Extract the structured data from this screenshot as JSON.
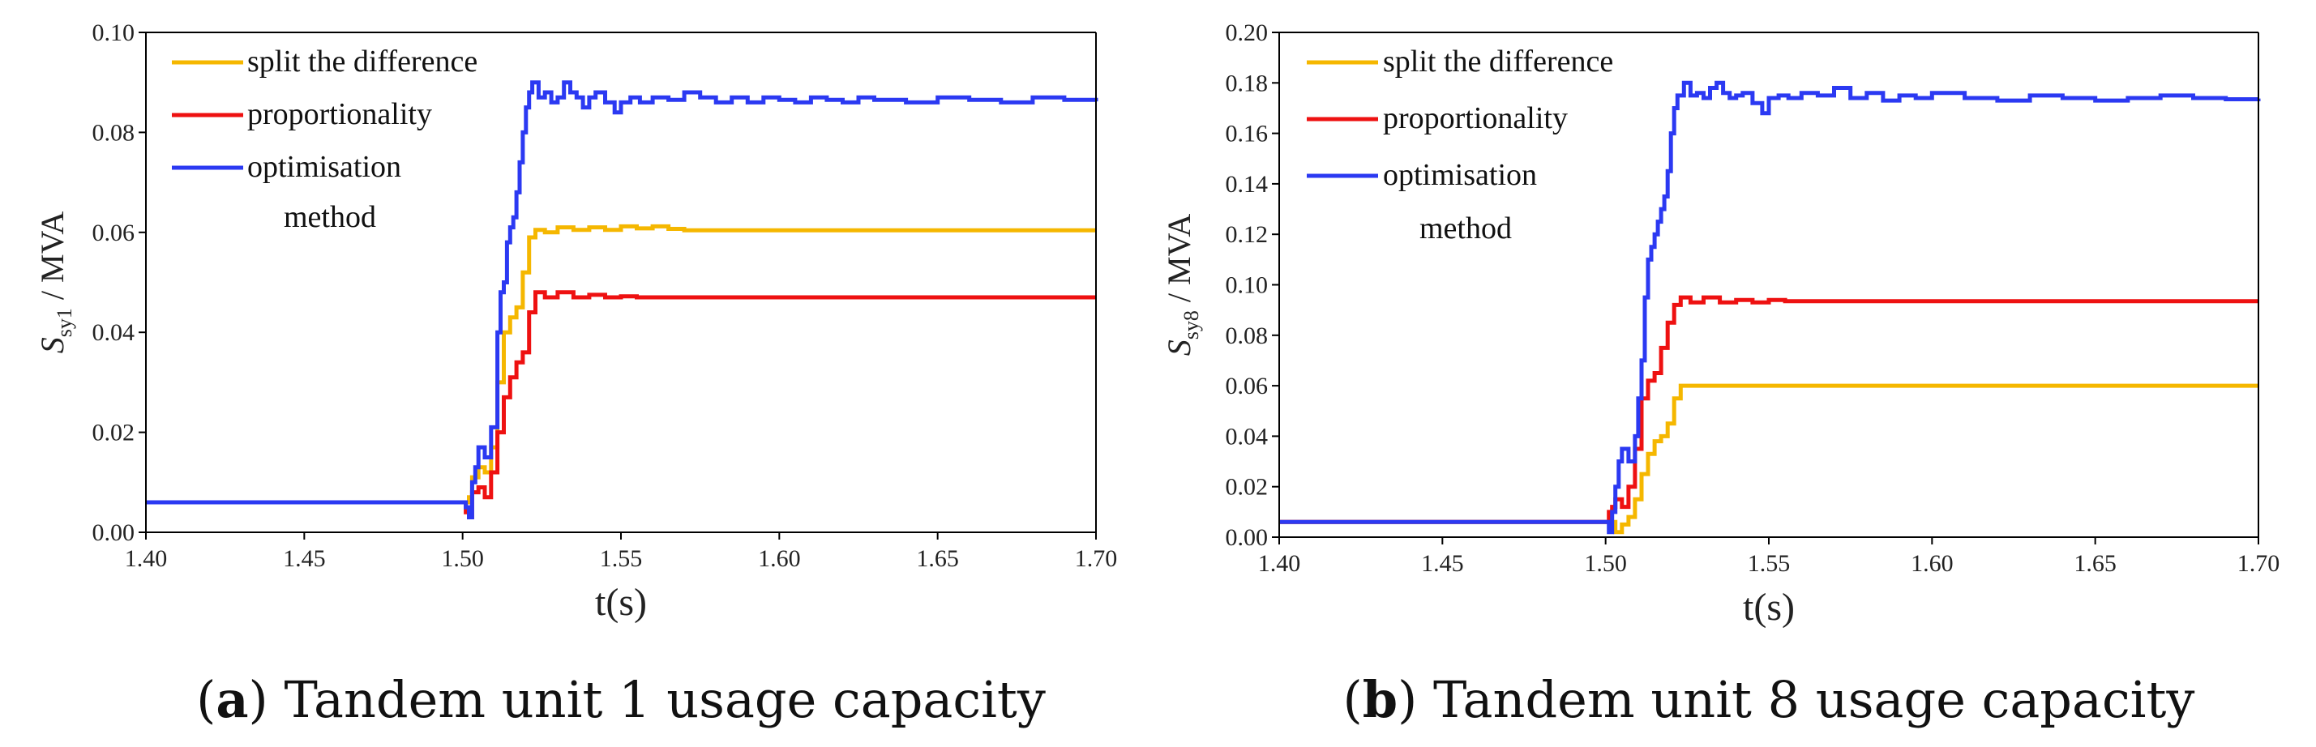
{
  "colors": {
    "split_the_difference": "#F5B700",
    "proportionality": "#EE1111",
    "optimisation_method": "#2B39F2"
  },
  "chart_data": [
    {
      "id": "a",
      "type": "line",
      "caption": {
        "letter": "a",
        "text": " Tandem unit 1 usage capacity"
      },
      "xlabel": "t(s)",
      "ylabel": {
        "symbol": "S",
        "subscript": "sy1",
        "unit": " / MVA"
      },
      "xlim": [
        1.4,
        1.7
      ],
      "ylim": [
        0.0,
        0.1
      ],
      "xticks": [
        "1.40",
        "1.45",
        "1.50",
        "1.55",
        "1.60",
        "1.65",
        "1.70"
      ],
      "yticks": [
        "0.00",
        "0.02",
        "0.04",
        "0.06",
        "0.08",
        "0.10"
      ],
      "legend": {
        "location": "top-left",
        "entries": [
          {
            "label": "split the difference",
            "color": "#F5B700"
          },
          {
            "label": "proportionality",
            "color": "#EE1111"
          },
          {
            "label": "optimisation",
            "label2": "method",
            "color": "#2B39F2"
          }
        ]
      },
      "series": [
        {
          "name": "split the difference",
          "color": "#F5B700",
          "x": [
            1.4,
            1.5,
            1.502,
            1.503,
            1.505,
            1.507,
            1.509,
            1.511,
            1.513,
            1.515,
            1.517,
            1.519,
            1.521,
            1.523,
            1.526,
            1.53,
            1.535,
            1.54,
            1.545,
            1.55,
            1.555,
            1.56,
            1.565,
            1.57,
            1.6,
            1.65,
            1.7
          ],
          "y": [
            0.006,
            0.006,
            0.007,
            0.011,
            0.013,
            0.012,
            0.017,
            0.03,
            0.04,
            0.043,
            0.045,
            0.052,
            0.059,
            0.0605,
            0.06,
            0.061,
            0.0605,
            0.061,
            0.0605,
            0.0612,
            0.0608,
            0.0612,
            0.0607,
            0.0604,
            0.0604,
            0.0604,
            0.0604
          ]
        },
        {
          "name": "proportionality",
          "color": "#EE1111",
          "x": [
            1.4,
            1.5,
            1.501,
            1.502,
            1.503,
            1.505,
            1.507,
            1.509,
            1.511,
            1.513,
            1.515,
            1.517,
            1.519,
            1.521,
            1.523,
            1.526,
            1.53,
            1.535,
            1.54,
            1.545,
            1.55,
            1.555,
            1.6,
            1.65,
            1.7
          ],
          "y": [
            0.006,
            0.006,
            0.004,
            0.003,
            0.008,
            0.009,
            0.007,
            0.012,
            0.02,
            0.027,
            0.031,
            0.034,
            0.036,
            0.044,
            0.048,
            0.047,
            0.048,
            0.047,
            0.0475,
            0.047,
            0.0472,
            0.047,
            0.047,
            0.047,
            0.047
          ]
        },
        {
          "name": "optimisation method",
          "color": "#2B39F2",
          "x": [
            1.4,
            1.5,
            1.501,
            1.502,
            1.503,
            1.504,
            1.505,
            1.507,
            1.509,
            1.511,
            1.512,
            1.513,
            1.514,
            1.515,
            1.516,
            1.517,
            1.518,
            1.519,
            1.52,
            1.521,
            1.522,
            1.524,
            1.526,
            1.528,
            1.53,
            1.532,
            1.534,
            1.536,
            1.538,
            1.54,
            1.542,
            1.545,
            1.548,
            1.55,
            1.553,
            1.556,
            1.56,
            1.565,
            1.57,
            1.575,
            1.58,
            1.585,
            1.59,
            1.595,
            1.6,
            1.605,
            1.61,
            1.615,
            1.62,
            1.625,
            1.63,
            1.64,
            1.65,
            1.66,
            1.67,
            1.68,
            1.69,
            1.7
          ],
          "y": [
            0.006,
            0.006,
            0.005,
            0.003,
            0.01,
            0.013,
            0.017,
            0.015,
            0.021,
            0.04,
            0.048,
            0.05,
            0.058,
            0.061,
            0.063,
            0.068,
            0.074,
            0.08,
            0.085,
            0.088,
            0.09,
            0.087,
            0.088,
            0.086,
            0.087,
            0.09,
            0.088,
            0.087,
            0.085,
            0.087,
            0.088,
            0.086,
            0.084,
            0.086,
            0.087,
            0.086,
            0.087,
            0.0865,
            0.088,
            0.087,
            0.086,
            0.087,
            0.086,
            0.087,
            0.0865,
            0.086,
            0.087,
            0.0865,
            0.086,
            0.087,
            0.0865,
            0.086,
            0.087,
            0.0865,
            0.086,
            0.087,
            0.0865,
            0.0862
          ]
        }
      ]
    },
    {
      "id": "b",
      "type": "line",
      "caption": {
        "letter": "b",
        "text": " Tandem unit 8 usage capacity"
      },
      "xlabel": "t(s)",
      "ylabel": {
        "symbol": "S",
        "subscript": "sy8",
        "unit": " / MVA"
      },
      "xlim": [
        1.4,
        1.7
      ],
      "ylim": [
        0.0,
        0.2
      ],
      "xticks": [
        "1.40",
        "1.45",
        "1.50",
        "1.55",
        "1.60",
        "1.65",
        "1.70"
      ],
      "yticks": [
        "0.00",
        "0.02",
        "0.04",
        "0.06",
        "0.08",
        "0.10",
        "0.12",
        "0.14",
        "0.16",
        "0.18",
        "0.20"
      ],
      "legend": {
        "location": "top-left",
        "entries": [
          {
            "label": "split the difference",
            "color": "#F5B700"
          },
          {
            "label": "proportionality",
            "color": "#EE1111"
          },
          {
            "label": "optimisation",
            "label2": "method",
            "color": "#2B39F2"
          }
        ]
      },
      "series": [
        {
          "name": "split the difference",
          "color": "#F5B700",
          "x": [
            1.4,
            1.502,
            1.503,
            1.505,
            1.507,
            1.509,
            1.511,
            1.513,
            1.515,
            1.517,
            1.519,
            1.521,
            1.523,
            1.53,
            1.6,
            1.7
          ],
          "y": [
            0.006,
            0.006,
            0.002,
            0.005,
            0.008,
            0.015,
            0.025,
            0.033,
            0.038,
            0.04,
            0.045,
            0.055,
            0.06,
            0.06,
            0.06,
            0.06
          ]
        },
        {
          "name": "proportionality",
          "color": "#EE1111",
          "x": [
            1.4,
            1.5,
            1.501,
            1.502,
            1.503,
            1.505,
            1.507,
            1.509,
            1.511,
            1.513,
            1.515,
            1.517,
            1.519,
            1.521,
            1.523,
            1.526,
            1.53,
            1.535,
            1.54,
            1.545,
            1.55,
            1.555,
            1.6,
            1.65,
            1.7
          ],
          "y": [
            0.006,
            0.006,
            0.01,
            0.012,
            0.015,
            0.012,
            0.02,
            0.035,
            0.055,
            0.062,
            0.065,
            0.075,
            0.085,
            0.092,
            0.095,
            0.093,
            0.095,
            0.093,
            0.094,
            0.093,
            0.094,
            0.0935,
            0.0935,
            0.0935,
            0.0935
          ]
        },
        {
          "name": "optimisation method",
          "color": "#2B39F2",
          "x": [
            1.4,
            1.5,
            1.501,
            1.502,
            1.503,
            1.504,
            1.505,
            1.507,
            1.509,
            1.51,
            1.511,
            1.512,
            1.513,
            1.514,
            1.515,
            1.516,
            1.517,
            1.518,
            1.519,
            1.52,
            1.521,
            1.522,
            1.524,
            1.526,
            1.528,
            1.53,
            1.532,
            1.534,
            1.536,
            1.538,
            1.54,
            1.542,
            1.545,
            1.548,
            1.55,
            1.553,
            1.556,
            1.56,
            1.565,
            1.57,
            1.575,
            1.58,
            1.585,
            1.59,
            1.595,
            1.6,
            1.61,
            1.62,
            1.63,
            1.64,
            1.65,
            1.66,
            1.67,
            1.68,
            1.69,
            1.7
          ],
          "y": [
            0.006,
            0.006,
            0.002,
            0.01,
            0.02,
            0.03,
            0.035,
            0.03,
            0.04,
            0.055,
            0.07,
            0.095,
            0.11,
            0.115,
            0.12,
            0.125,
            0.13,
            0.135,
            0.145,
            0.16,
            0.17,
            0.175,
            0.18,
            0.175,
            0.176,
            0.174,
            0.178,
            0.18,
            0.176,
            0.174,
            0.175,
            0.176,
            0.172,
            0.168,
            0.174,
            0.175,
            0.174,
            0.176,
            0.175,
            0.178,
            0.174,
            0.176,
            0.173,
            0.175,
            0.174,
            0.176,
            0.174,
            0.173,
            0.175,
            0.174,
            0.173,
            0.174,
            0.175,
            0.174,
            0.1735,
            0.1738
          ]
        }
      ]
    }
  ]
}
